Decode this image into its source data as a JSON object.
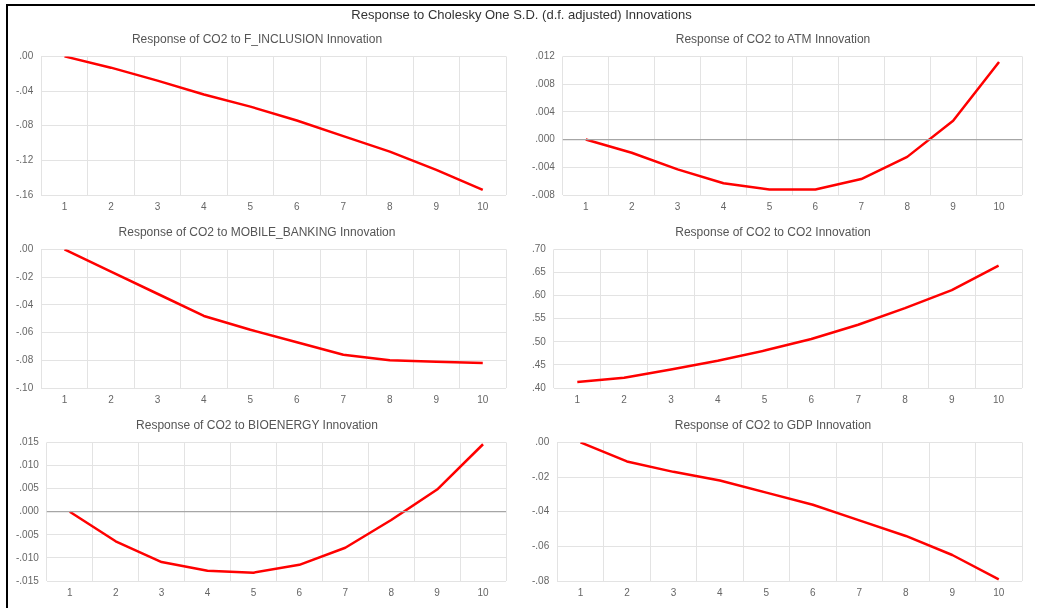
{
  "chart_data": [
    {
      "type": "line",
      "title": "Response of CO2 to F_INCLUSION Innovation",
      "annotations": [
        "Response to Cholesky One S.D. (d.f. adjusted) Innovations"
      ],
      "categories": [
        "1",
        "2",
        "3",
        "4",
        "5",
        "6",
        "7",
        "8",
        "9",
        "10"
      ],
      "series": [
        {
          "color": "#ff0000",
          "values": [
            0,
            -0.013,
            -0.028,
            -0.044,
            -0.058,
            -0.074,
            -0.092,
            -0.11,
            -0.131,
            -0.154
          ]
        }
      ],
      "ylim": [
        -0.16,
        0
      ],
      "yticks": [
        {
          "value": -0.16,
          "label": "-.16"
        },
        {
          "value": -0.12,
          "label": "-.12"
        },
        {
          "value": -0.08,
          "label": "-.08"
        },
        {
          "value": -0.04,
          "label": "-.04"
        },
        {
          "value": 0,
          "label": ".00"
        }
      ],
      "grid": true,
      "legend": false,
      "marker": "none",
      "line_style": "solid"
    },
    {
      "type": "line",
      "title": "Response of CO2 to ATM Innovation",
      "categories": [
        "1",
        "2",
        "3",
        "4",
        "5",
        "6",
        "7",
        "8",
        "9",
        "10"
      ],
      "series": [
        {
          "color": "#ff0000",
          "values": [
            0,
            -0.0019,
            -0.0043,
            -0.0063,
            -0.0072,
            -0.0072,
            -0.0057,
            -0.0025,
            0.0027,
            0.0112
          ]
        }
      ],
      "ylim": [
        -0.008,
        0.012
      ],
      "yticks": [
        {
          "value": -0.008,
          "label": "-.008"
        },
        {
          "value": -0.004,
          "label": "-.004"
        },
        {
          "value": 0,
          "label": ".000"
        },
        {
          "value": 0.004,
          "label": ".004"
        },
        {
          "value": 0.008,
          "label": ".008"
        },
        {
          "value": 0.012,
          "label": ".012"
        }
      ],
      "ref_lines": [
        {
          "axis": "y",
          "value": 0,
          "color": "#a6a6a6"
        }
      ],
      "grid": true,
      "legend": false,
      "marker": "none",
      "line_style": "solid"
    },
    {
      "type": "line",
      "title": "Response of CO2 to MOBILE_BANKING Innovation",
      "categories": [
        "1",
        "2",
        "3",
        "4",
        "5",
        "6",
        "7",
        "8",
        "9",
        "10"
      ],
      "series": [
        {
          "color": "#ff0000",
          "values": [
            0,
            -0.016,
            -0.032,
            -0.048,
            -0.058,
            -0.067,
            -0.076,
            -0.08,
            -0.081,
            -0.082
          ]
        }
      ],
      "ylim": [
        -0.1,
        0
      ],
      "yticks": [
        {
          "value": -0.1,
          "label": "-.10"
        },
        {
          "value": -0.08,
          "label": "-.08"
        },
        {
          "value": -0.06,
          "label": "-.06"
        },
        {
          "value": -0.04,
          "label": "-.04"
        },
        {
          "value": -0.02,
          "label": "-.02"
        },
        {
          "value": 0,
          "label": ".00"
        }
      ],
      "grid": true,
      "legend": false,
      "marker": "none",
      "line_style": "solid"
    },
    {
      "type": "line",
      "title": "Response of CO2 to CO2 Innovation",
      "categories": [
        "1",
        "2",
        "3",
        "4",
        "5",
        "6",
        "7",
        "8",
        "9",
        "10"
      ],
      "series": [
        {
          "color": "#ff0000",
          "values": [
            0.413,
            0.422,
            0.44,
            0.459,
            0.481,
            0.506,
            0.537,
            0.573,
            0.612,
            0.665
          ]
        }
      ],
      "ylim": [
        0.4,
        0.7
      ],
      "yticks": [
        {
          "value": 0.4,
          "label": ".40"
        },
        {
          "value": 0.45,
          "label": ".45"
        },
        {
          "value": 0.5,
          "label": ".50"
        },
        {
          "value": 0.55,
          "label": ".55"
        },
        {
          "value": 0.6,
          "label": ".60"
        },
        {
          "value": 0.65,
          "label": ".65"
        },
        {
          "value": 0.7,
          "label": ".70"
        }
      ],
      "grid": true,
      "legend": false,
      "marker": "none",
      "line_style": "solid"
    },
    {
      "type": "line",
      "title": "Response of CO2 to BIOENERGY Innovation",
      "categories": [
        "1",
        "2",
        "3",
        "4",
        "5",
        "6",
        "7",
        "8",
        "9",
        "10"
      ],
      "series": [
        {
          "color": "#ff0000",
          "values": [
            0,
            -0.0064,
            -0.0109,
            -0.0128,
            -0.0132,
            -0.0115,
            -0.0078,
            -0.0018,
            0.0048,
            0.0146
          ]
        }
      ],
      "ylim": [
        -0.015,
        0.015
      ],
      "yticks": [
        {
          "value": -0.015,
          "label": "-.015"
        },
        {
          "value": -0.01,
          "label": "-.010"
        },
        {
          "value": -0.005,
          "label": "-.005"
        },
        {
          "value": 0,
          "label": ".000"
        },
        {
          "value": 0.005,
          "label": ".005"
        },
        {
          "value": 0.01,
          "label": ".010"
        },
        {
          "value": 0.015,
          "label": ".015"
        }
      ],
      "ref_lines": [
        {
          "axis": "y",
          "value": 0,
          "color": "#a6a6a6"
        }
      ],
      "grid": true,
      "legend": false,
      "marker": "none",
      "line_style": "solid"
    },
    {
      "type": "line",
      "title": "Response of CO2 to GDP Innovation",
      "categories": [
        "1",
        "2",
        "3",
        "4",
        "5",
        "6",
        "7",
        "8",
        "9",
        "10"
      ],
      "series": [
        {
          "color": "#ff0000",
          "values": [
            0,
            -0.011,
            -0.017,
            -0.022,
            -0.029,
            -0.036,
            -0.045,
            -0.054,
            -0.065,
            -0.079
          ]
        }
      ],
      "ylim": [
        -0.08,
        0
      ],
      "yticks": [
        {
          "value": -0.08,
          "label": "-.08"
        },
        {
          "value": -0.06,
          "label": "-.06"
        },
        {
          "value": -0.04,
          "label": "-.04"
        },
        {
          "value": -0.02,
          "label": "-.02"
        },
        {
          "value": 0,
          "label": ".00"
        }
      ],
      "grid": true,
      "legend": false,
      "marker": "none",
      "line_style": "solid"
    }
  ]
}
